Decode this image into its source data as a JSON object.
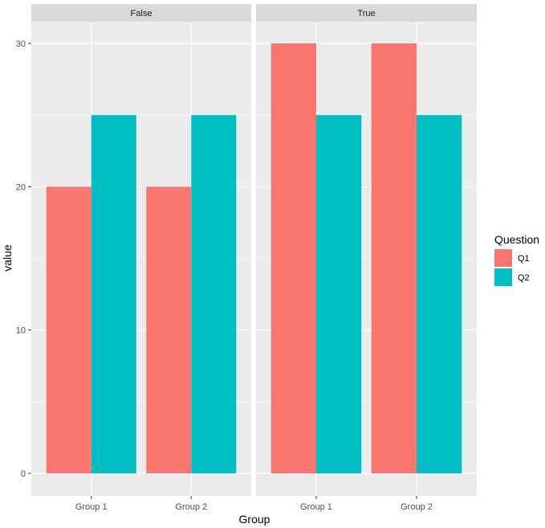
{
  "chart_data": {
    "type": "bar",
    "facet_var": "facet",
    "facets": [
      "False",
      "True"
    ],
    "categories": [
      "Group 1",
      "Group 2"
    ],
    "series": [
      {
        "name": "Q1",
        "color": "#F8766D",
        "values": {
          "False": [
            20,
            20
          ],
          "True": [
            30,
            30
          ]
        }
      },
      {
        "name": "Q2",
        "color": "#00BFC4",
        "values": {
          "False": [
            25,
            25
          ],
          "True": [
            25,
            25
          ]
        }
      }
    ],
    "xlabel": "Group",
    "ylabel": "value",
    "yticks": [
      0,
      10,
      20,
      30
    ],
    "ylim": [
      0,
      31.5
    ],
    "legend": {
      "title": "Question",
      "position": "right"
    },
    "grid": true,
    "panel_background": "#EBEBEB",
    "strip_background": "#D9D9D9"
  }
}
